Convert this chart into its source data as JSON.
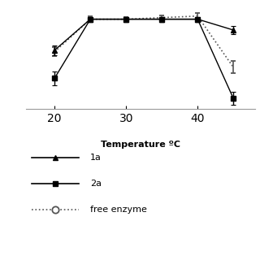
{
  "x": [
    20,
    25,
    30,
    35,
    40,
    45
  ],
  "series_1a": [
    0.73,
    0.93,
    0.93,
    0.93,
    0.93,
    0.86
  ],
  "series_1a_err": [
    0.03,
    0.015,
    0.015,
    0.015,
    0.015,
    0.025
  ],
  "series_2a": [
    0.55,
    0.93,
    0.93,
    0.93,
    0.93,
    0.42
  ],
  "series_2a_err": [
    0.045,
    0.015,
    0.015,
    0.015,
    0.015,
    0.04
  ],
  "series_free": [
    0.72,
    0.93,
    0.93,
    0.94,
    0.95,
    0.62
  ],
  "series_free_err": [
    0.03,
    0.02,
    0.015,
    0.015,
    0.02,
    0.04
  ],
  "xlabel": "Temperature ºC",
  "xticks": [
    20,
    30,
    40
  ],
  "ylim": [
    0.35,
    1.02
  ],
  "xlim": [
    16,
    48
  ],
  "color_all": "#000000",
  "color_free": "#555555",
  "legend_labels": [
    "1a",
    "2a",
    "free enzyme"
  ],
  "bg_color": "#ffffff"
}
